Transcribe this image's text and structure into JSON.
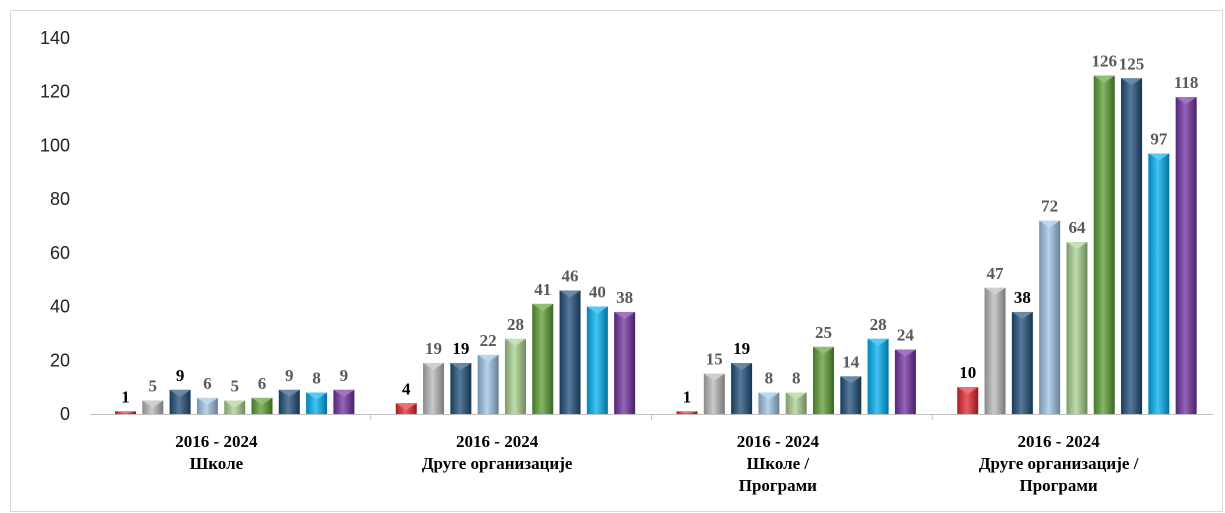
{
  "chart_data": {
    "type": "bar",
    "title": "",
    "xlabel": "",
    "ylabel": "",
    "ylim": [
      0,
      140
    ],
    "yticks": [
      "0",
      "20",
      "40",
      "60",
      "80",
      "100",
      "120",
      "140"
    ],
    "grid": false,
    "legend": "none",
    "categories": [
      [
        "2016 - 2024",
        "Школе"
      ],
      [
        "2016 - 2024",
        "Друге организације"
      ],
      [
        "2016 - 2024",
        "Школе /",
        "Програми"
      ],
      [
        "2016 - 2024",
        "Друге организације /",
        "Програми"
      ]
    ],
    "series": [
      {
        "values": [
          1,
          4,
          1,
          10
        ],
        "color": "#e3262b"
      },
      {
        "values": [
          5,
          19,
          15,
          47
        ],
        "color": "#b8b8b8"
      },
      {
        "values": [
          9,
          19,
          19,
          38
        ],
        "color": "#1f4e79"
      },
      {
        "values": [
          6,
          22,
          8,
          72
        ],
        "color": "#9dc3e6"
      },
      {
        "values": [
          5,
          28,
          8,
          64
        ],
        "color": "#a9d18e"
      },
      {
        "values": [
          6,
          41,
          25,
          126
        ],
        "color": "#5a9e32"
      },
      {
        "values": [
          9,
          46,
          14,
          125
        ],
        "color": "#1f4e79"
      },
      {
        "values": [
          8,
          40,
          28,
          97
        ],
        "color": "#00b0f0"
      },
      {
        "values": [
          9,
          38,
          24,
          118
        ],
        "color": "#7030a0"
      }
    ],
    "label_colors": [
      "#000000",
      "#595959",
      "#000000",
      "#595959",
      "#595959",
      "#595959",
      "#595959",
      "#595959",
      "#595959"
    ]
  }
}
